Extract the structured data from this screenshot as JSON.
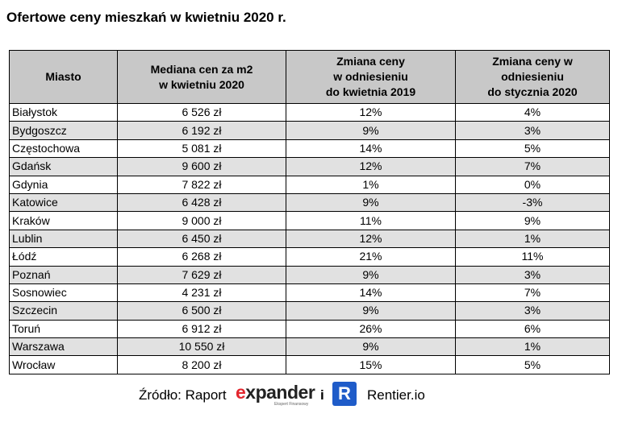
{
  "title": "Ofertowe ceny mieszkań w kwietniu 2020 r.",
  "table": {
    "headers": [
      [
        "Miasto"
      ],
      [
        "Mediana cen za m2",
        "w kwietniu 2020"
      ],
      [
        "Zmiana ceny",
        "w odniesieniu",
        "do kwietnia 2019"
      ],
      [
        "Zmiana ceny w",
        "odniesieniu",
        "do stycznia 2020"
      ]
    ],
    "rows": [
      [
        "Białystok",
        "6 526 zł",
        "12%",
        "4%"
      ],
      [
        "Bydgoszcz",
        "6 192 zł",
        "9%",
        "3%"
      ],
      [
        "Częstochowa",
        "5 081 zł",
        "14%",
        "5%"
      ],
      [
        "Gdańsk",
        "9 600 zł",
        "12%",
        "7%"
      ],
      [
        "Gdynia",
        "7 822 zł",
        "1%",
        "0%"
      ],
      [
        "Katowice",
        "6 428 zł",
        "9%",
        "-3%"
      ],
      [
        "Kraków",
        "9 000 zł",
        "11%",
        "9%"
      ],
      [
        "Lublin",
        "6 450 zł",
        "12%",
        "1%"
      ],
      [
        "Łódź",
        "6 268 zł",
        "21%",
        "11%"
      ],
      [
        "Poznań",
        "7 629 zł",
        "9%",
        "3%"
      ],
      [
        "Sosnowiec",
        "4 231 zł",
        "14%",
        "7%"
      ],
      [
        "Szczecin",
        "6 500 zł",
        "9%",
        "3%"
      ],
      [
        "Toruń",
        "6 912 zł",
        "26%",
        "6%"
      ],
      [
        "Warszawa",
        "10 550 zł",
        "9%",
        "1%"
      ],
      [
        "Wrocław",
        "8 200 zł",
        "15%",
        "5%"
      ]
    ]
  },
  "footer": {
    "source_label": "Źródło: Raport",
    "brand_first_letter": "e",
    "brand_rest": "xpander",
    "brand_tagline": "Ekspert Finansowy",
    "conjunction": "i",
    "logo_letter": "R",
    "partner_name": "Rentier.io",
    "brand_accent_color": "#e3262e",
    "logo_color": "#1f5cc9"
  },
  "colors": {
    "header_bg": "#c8c8c8",
    "stripe_bg": "#e1e1e1"
  }
}
